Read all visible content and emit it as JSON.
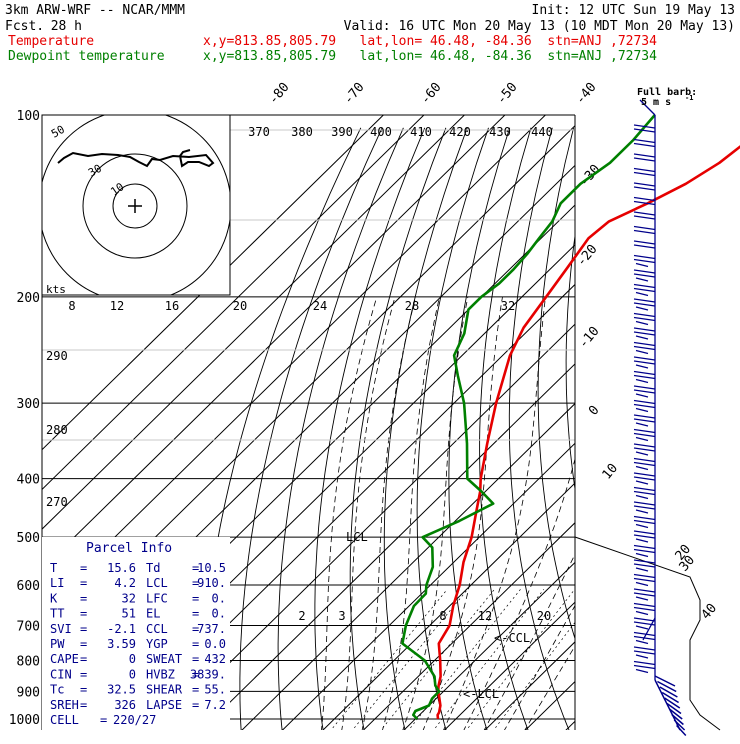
{
  "header": {
    "model": "3km ARW-WRF -- NCAR/MMM",
    "init": "Init: 12 UTC Sun 19 May 13",
    "fcst_label": "Fcst.",
    "fcst_value": "28 h",
    "valid": "Valid: 16 UTC Mon 20 May 13 (10 MDT Mon 20 May 13)",
    "temp_label": "Temperature",
    "dew_label": "Dewpoint temperature",
    "loc_temp": "x,y=813.85,805.79   lat,lon= 46.48, -84.36  stn=ANJ ,72734",
    "loc_dew": "x,y=813.85,805.79   lat,lon= 46.48, -84.36  stn=ANJ ,72734",
    "temp_color": "#e60000",
    "dew_color": "#008000"
  },
  "chart_data": {
    "type": "line",
    "title": "Skew-T log-P sounding",
    "y_axis": {
      "label": "Pressure (hPa)",
      "scale": "log",
      "ticks": [
        100,
        200,
        300,
        400,
        500,
        600,
        700,
        800,
        900,
        1000
      ],
      "ylim": [
        1000,
        100
      ]
    },
    "isotherm_labels": [
      "-80",
      "-70",
      "-60",
      "-50",
      "-40",
      "-30",
      "-20",
      "-10",
      "0",
      "10",
      "20",
      "30",
      "40"
    ],
    "theta_labels": [
      "370",
      "380",
      "390",
      "400",
      "410",
      "420",
      "430",
      "440",
      "290",
      "280",
      "270"
    ],
    "mixing_ratio_labels": [
      "2",
      "3",
      "8",
      "12",
      "20"
    ],
    "series": [
      {
        "name": "Temperature",
        "color": "#e60000",
        "pressure": [
          1000,
          985,
          975,
          950,
          925,
          900,
          880,
          850,
          800,
          750,
          700,
          650,
          600,
          550,
          500,
          450,
          420,
          400,
          350,
          300,
          250,
          225,
          200,
          180,
          160,
          150,
          140,
          130,
          120,
          110,
          100
        ],
        "temperature": [
          15.6,
          14.5,
          14.2,
          12.8,
          10.8,
          8.7,
          7.3,
          5.5,
          1.4,
          -3.2,
          -5.1,
          -9.1,
          -12.8,
          -17.6,
          -21.9,
          -27.6,
          -31.3,
          -34.4,
          -41.6,
          -49.6,
          -58.2,
          -61.8,
          -64.0,
          -66.0,
          -68.3,
          -67.5,
          -62.5,
          -58.0,
          -55.0,
          -53.5,
          -53.0
        ]
      },
      {
        "name": "Dewpoint temperature",
        "color": "#008000",
        "pressure": [
          1000,
          985,
          970,
          950,
          925,
          900,
          880,
          850,
          800,
          750,
          700,
          650,
          620,
          600,
          560,
          520,
          500,
          470,
          440,
          420,
          400,
          350,
          300,
          270,
          250,
          230,
          210,
          200,
          190,
          180,
          170,
          160,
          150,
          140,
          130,
          120,
          110,
          100
        ],
        "temperature": [
          10.5,
          8.5,
          8.0,
          10.0,
          9.0,
          8.9,
          6.5,
          4.0,
          -2.4,
          -12.2,
          -15.9,
          -18.8,
          -19.0,
          -21.0,
          -24.0,
          -29.0,
          -34.0,
          -29.0,
          -25.0,
          -31.0,
          -37.7,
          -46.6,
          -57.5,
          -66.0,
          -72.0,
          -75.0,
          -80.0,
          -80.0,
          -79.0,
          -79.0,
          -79.5,
          -80.5,
          -81.5,
          -84.0,
          -84.0,
          -82.0,
          -82.0,
          -83.0
        ]
      }
    ],
    "annotations": [
      "LCL",
      "<-CCL",
      "<-LCL"
    ],
    "hodograph": {
      "units_label": "kts",
      "ring_labels": [
        "10",
        "30",
        "50"
      ],
      "speed_ticks": [
        "8",
        "12",
        "16",
        "20",
        "24",
        "28",
        "32"
      ]
    },
    "wind_barbs": {
      "title": "Full barb:",
      "unit": "5 m s",
      "unit_exp": "-1"
    }
  },
  "parcel_info": {
    "title": "Parcel Info",
    "rows": [
      {
        "l1": "T",
        "v1": "15.6",
        "l2": "Td",
        "v2": "10.5"
      },
      {
        "l1": "LI",
        "v1": "4.2",
        "l2": "LCL",
        "v2": "910."
      },
      {
        "l1": "K",
        "v1": "32",
        "l2": "LFC",
        "v2": "0."
      },
      {
        "l1": "TT",
        "v1": "51",
        "l2": "EL",
        "v2": "0."
      },
      {
        "l1": "SVI",
        "v1": "-2.1",
        "l2": "CCL",
        "v2": "737."
      },
      {
        "l1": "PW",
        "v1": "3.59",
        "l2": "YGP",
        "v2": "0.0"
      },
      {
        "l1": "CAPE",
        "v1": "0",
        "l2": "SWEAT",
        "v2": "432"
      },
      {
        "l1": "CIN",
        "v1": "0",
        "l2": "HVBZ",
        "v2": "3839."
      },
      {
        "l1": "Tc",
        "v1": "32.5",
        "l2": "SHEAR",
        "v2": "55."
      },
      {
        "l1": "SREH",
        "v1": "326",
        "l2": "LAPSE",
        "v2": "7.2"
      }
    ],
    "cell_label": "CELL",
    "cell_value": "220/27"
  }
}
